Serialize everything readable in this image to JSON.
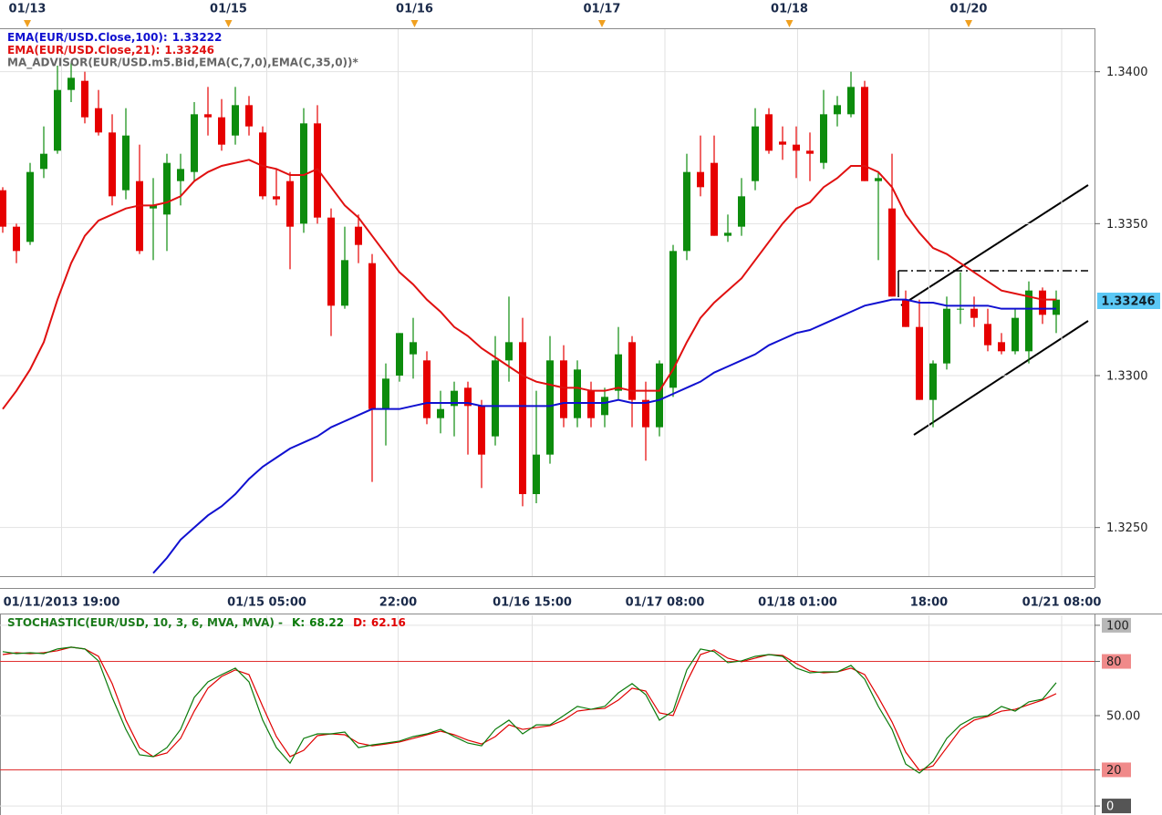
{
  "chart_data": [
    {
      "type": "candlestick",
      "study_label": "MA_ADVISOR(EUR/USD.m5.Bid,EMA(C,7,0),EMA(C,35,0))*",
      "up_color": "#0d8c0d",
      "down_color": "#e60000",
      "open": [
        1.3361,
        1.3349,
        1.3344,
        1.3368,
        1.3374,
        1.3394,
        1.3397,
        1.3388,
        1.338,
        1.3361,
        1.3364,
        1.3355,
        1.3353,
        1.3364,
        1.3367,
        1.3386,
        1.3385,
        1.3379,
        1.3389,
        1.338,
        1.3359,
        1.3364,
        1.335,
        1.3383,
        1.3352,
        1.3323,
        1.3349,
        1.3337,
        1.3289,
        1.33,
        1.3307,
        1.3305,
        1.3286,
        1.329,
        1.3296,
        1.329,
        1.328,
        1.3305,
        1.3311,
        1.3261,
        1.3274,
        1.3305,
        1.3286,
        1.3295,
        1.3287,
        1.3295,
        1.3311,
        1.3292,
        1.3283,
        1.3296,
        1.3341,
        1.3367,
        1.337,
        1.3346,
        1.3349,
        1.3364,
        1.3386,
        1.3377,
        1.3376,
        1.3374,
        1.337,
        1.3386,
        1.3386,
        1.3395,
        1.3364,
        1.3355,
        1.3325,
        1.3316,
        1.3292,
        1.3304,
        1.3322,
        1.3322,
        1.3317,
        1.3311,
        1.3308,
        1.3308,
        1.3328,
        1.332
      ],
      "high": [
        1.3362,
        1.335,
        1.337,
        1.3382,
        1.3402,
        1.3403,
        1.34,
        1.3394,
        1.3386,
        1.3388,
        1.3376,
        1.3365,
        1.3373,
        1.3373,
        1.339,
        1.3395,
        1.3391,
        1.3395,
        1.3392,
        1.3382,
        1.3368,
        1.3367,
        1.3388,
        1.3389,
        1.3355,
        1.3349,
        1.3353,
        1.334,
        1.3304,
        1.3314,
        1.3319,
        1.3308,
        1.3295,
        1.3298,
        1.3298,
        1.3292,
        1.3313,
        1.3326,
        1.3319,
        1.3295,
        1.3313,
        1.331,
        1.3305,
        1.3298,
        1.3296,
        1.3316,
        1.3313,
        1.3298,
        1.3305,
        1.3343,
        1.3373,
        1.3379,
        1.3379,
        1.3353,
        1.3365,
        1.3388,
        1.3388,
        1.3382,
        1.3382,
        1.338,
        1.3394,
        1.3392,
        1.34,
        1.3397,
        1.3367,
        1.3373,
        1.3328,
        1.3325,
        1.3305,
        1.3326,
        1.3334,
        1.3326,
        1.3322,
        1.3314,
        1.3322,
        1.3331,
        1.3329,
        1.3328
      ],
      "low": [
        1.3347,
        1.3337,
        1.3343,
        1.3365,
        1.3373,
        1.339,
        1.3383,
        1.3379,
        1.3356,
        1.3358,
        1.334,
        1.3338,
        1.3341,
        1.3356,
        1.3364,
        1.3379,
        1.3374,
        1.3376,
        1.3379,
        1.3358,
        1.3356,
        1.3335,
        1.3347,
        1.335,
        1.3313,
        1.3322,
        1.3337,
        1.3265,
        1.3277,
        1.3298,
        1.3299,
        1.3284,
        1.3281,
        1.328,
        1.3274,
        1.3263,
        1.3277,
        1.3298,
        1.3257,
        1.3258,
        1.3271,
        1.3283,
        1.3283,
        1.3283,
        1.3283,
        1.3292,
        1.3283,
        1.3272,
        1.328,
        1.3293,
        1.3338,
        1.3359,
        1.3346,
        1.3344,
        1.3346,
        1.3361,
        1.3373,
        1.3371,
        1.3365,
        1.3364,
        1.3368,
        1.3382,
        1.3385,
        1.3364,
        1.3338,
        1.3326,
        1.3316,
        1.3292,
        1.3283,
        1.3302,
        1.3317,
        1.3316,
        1.3308,
        1.3307,
        1.3307,
        1.3304,
        1.3317,
        1.3314
      ],
      "close": [
        1.3349,
        1.3341,
        1.3367,
        1.3373,
        1.3394,
        1.3398,
        1.3385,
        1.338,
        1.3359,
        1.3379,
        1.3341,
        1.3356,
        1.337,
        1.3368,
        1.3386,
        1.3385,
        1.3376,
        1.3389,
        1.3382,
        1.3359,
        1.3358,
        1.3349,
        1.3383,
        1.3352,
        1.3323,
        1.3338,
        1.3343,
        1.3289,
        1.3299,
        1.3314,
        1.3311,
        1.3286,
        1.3289,
        1.3295,
        1.329,
        1.3274,
        1.3305,
        1.3311,
        1.3261,
        1.3274,
        1.3305,
        1.3286,
        1.3302,
        1.3286,
        1.3293,
        1.3307,
        1.3292,
        1.3283,
        1.3304,
        1.3341,
        1.3367,
        1.3362,
        1.3346,
        1.3347,
        1.3359,
        1.3382,
        1.3374,
        1.3376,
        1.3374,
        1.3373,
        1.3386,
        1.3389,
        1.3395,
        1.3364,
        1.3365,
        1.3326,
        1.3316,
        1.3292,
        1.3304,
        1.3322,
        1.3322,
        1.3319,
        1.331,
        1.3308,
        1.3319,
        1.3328,
        1.332,
        1.3325
      ],
      "series": [
        {
          "name": "EMA(EUR/USD.Close,100):",
          "last": 1.33222,
          "color": "#1010d0",
          "values": [
            null,
            null,
            null,
            null,
            null,
            null,
            null,
            null,
            null,
            null,
            null,
            1.3235,
            1.324,
            1.3246,
            1.325,
            1.3254,
            1.3257,
            1.3261,
            1.3266,
            1.327,
            1.3273,
            1.3276,
            1.3278,
            1.328,
            1.3283,
            1.3285,
            1.3287,
            1.3289,
            1.3289,
            1.3289,
            1.329,
            1.3291,
            1.3291,
            1.3291,
            1.3291,
            1.329,
            1.329,
            1.329,
            1.329,
            1.329,
            1.329,
            1.3291,
            1.3291,
            1.3291,
            1.3291,
            1.3292,
            1.3291,
            1.3291,
            1.3292,
            1.3294,
            1.3296,
            1.3298,
            1.3301,
            1.3303,
            1.3305,
            1.3307,
            1.331,
            1.3312,
            1.3314,
            1.3315,
            1.3317,
            1.3319,
            1.3321,
            1.3323,
            1.3324,
            1.3325,
            1.3325,
            1.3324,
            1.3324,
            1.3323,
            1.3323,
            1.3323,
            1.3323,
            1.3322,
            1.3322,
            1.3322,
            1.3322,
            1.3322
          ]
        },
        {
          "name": "EMA(EUR/USD.Close,21):",
          "last": 1.33246,
          "color": "#e01010",
          "values": [
            1.3289,
            1.3295,
            1.3302,
            1.3311,
            1.3325,
            1.3337,
            1.3346,
            1.3351,
            1.3353,
            1.3355,
            1.3356,
            1.3356,
            1.3357,
            1.3359,
            1.3364,
            1.3367,
            1.3369,
            1.337,
            1.3371,
            1.3369,
            1.3368,
            1.3366,
            1.3366,
            1.3368,
            1.3362,
            1.3356,
            1.3352,
            1.3346,
            1.334,
            1.3334,
            1.333,
            1.3325,
            1.3321,
            1.3316,
            1.3313,
            1.3309,
            1.3306,
            1.3303,
            1.33,
            1.3298,
            1.3297,
            1.3296,
            1.3296,
            1.3295,
            1.3295,
            1.3296,
            1.3295,
            1.3295,
            1.3295,
            1.3302,
            1.3311,
            1.3319,
            1.3324,
            1.3328,
            1.3332,
            1.3338,
            1.3344,
            1.335,
            1.3355,
            1.3357,
            1.3362,
            1.3365,
            1.3369,
            1.3369,
            1.3367,
            1.3362,
            1.3353,
            1.3347,
            1.3342,
            1.334,
            1.3337,
            1.3334,
            1.3331,
            1.3328,
            1.3327,
            1.3326,
            1.3325,
            1.3325
          ]
        }
      ],
      "last_price": 1.33246,
      "xlim": [
        -0.2,
        79.8
      ],
      "xticks": [
        {
          "value": 4.3,
          "label": "01/11/2013 19:00"
        },
        {
          "value": 19.3,
          "label": "01/15 05:00"
        },
        {
          "value": 28.9,
          "label": "22:00"
        },
        {
          "value": 38.7,
          "label": "01/16 15:00"
        },
        {
          "value": 48.4,
          "label": "01/17 08:00"
        },
        {
          "value": 58.1,
          "label": "01/18 01:00"
        },
        {
          "value": 67.7,
          "label": "18:00"
        },
        {
          "value": 77.4,
          "label": "01/21 08:00"
        }
      ],
      "top_xticks": [
        {
          "value": 1.8,
          "label": "01/13"
        },
        {
          "value": 16.5,
          "label": "01/15"
        },
        {
          "value": 30.1,
          "label": "01/16"
        },
        {
          "value": 43.8,
          "label": "01/17"
        },
        {
          "value": 57.5,
          "label": "01/18"
        },
        {
          "value": 70.6,
          "label": "01/20"
        }
      ],
      "ylim": [
        1.3234,
        1.3414
      ],
      "yticks": [
        {
          "value": 1.325,
          "label": "1.3250"
        },
        {
          "value": 1.33,
          "label": "1.3300"
        },
        {
          "value": 1.335,
          "label": "1.3350"
        },
        {
          "value": 1.34,
          "label": "1.3400"
        }
      ],
      "grid": true
    },
    {
      "type": "line",
      "title": "STOCHASTIC(EUR/USD, 10, 3, 6, MVA, MVA) -",
      "series": [
        {
          "name": "K:",
          "last": 68.22,
          "color": "#0a7a0a",
          "values": [
            85.4,
            84.3,
            84.8,
            84.3,
            86.9,
            87.9,
            86.9,
            80.3,
            60.1,
            42.4,
            28.3,
            27.3,
            32.3,
            42.4,
            60.1,
            68.7,
            72.7,
            76.3,
            68.7,
            47.5,
            32.3,
            23.7,
            37.4,
            39.9,
            39.9,
            40.9,
            32.3,
            33.8,
            34.8,
            35.9,
            38.4,
            39.9,
            42.4,
            38.4,
            34.8,
            33.3,
            42.4,
            47.5,
            39.9,
            44.9,
            44.9,
            50.0,
            55.1,
            53.5,
            55.1,
            62.6,
            67.7,
            61.6,
            47.5,
            52.5,
            75.3,
            86.9,
            85.4,
            79.3,
            80.3,
            82.8,
            83.8,
            82.8,
            76.3,
            73.7,
            74.2,
            74.2,
            77.8,
            70.2,
            55.1,
            42.4,
            23.2,
            18.2,
            24.7,
            37.4,
            44.9,
            49.0,
            50.0,
            55.1,
            52.5,
            57.6,
            59.1,
            68.22
          ]
        },
        {
          "name": "D:",
          "last": 62.16,
          "color": "#e00000",
          "values": [
            83.8,
            84.8,
            84.3,
            84.8,
            85.9,
            87.9,
            86.9,
            82.8,
            67.7,
            47.5,
            32.3,
            27.3,
            29.3,
            37.4,
            52.5,
            65.2,
            71.7,
            75.3,
            72.7,
            55.1,
            38.4,
            27.3,
            30.8,
            38.9,
            39.9,
            39.4,
            34.8,
            33.3,
            34.3,
            35.4,
            37.4,
            39.4,
            41.4,
            39.4,
            36.4,
            34.3,
            38.4,
            44.9,
            42.4,
            43.4,
            44.4,
            47.5,
            52.5,
            53.5,
            54.0,
            58.6,
            65.2,
            63.6,
            51.5,
            50.0,
            68.7,
            83.8,
            86.4,
            81.8,
            79.8,
            81.8,
            83.8,
            83.3,
            78.8,
            74.7,
            73.7,
            74.2,
            76.3,
            72.7,
            60.1,
            46.5,
            29.8,
            19.7,
            22.2,
            32.3,
            42.4,
            47.5,
            49.5,
            52.5,
            53.5,
            56.1,
            58.6,
            62.16
          ]
        }
      ],
      "xlim": [
        -0.2,
        79.8
      ],
      "ylim": [
        -4.5,
        105.5
      ],
      "yticks": [
        100,
        80,
        {
          "value": 50,
          "label": "50.00"
        },
        20,
        0
      ],
      "hlines": [
        80,
        20
      ],
      "hline_color": "#e03030",
      "grid": true
    }
  ]
}
